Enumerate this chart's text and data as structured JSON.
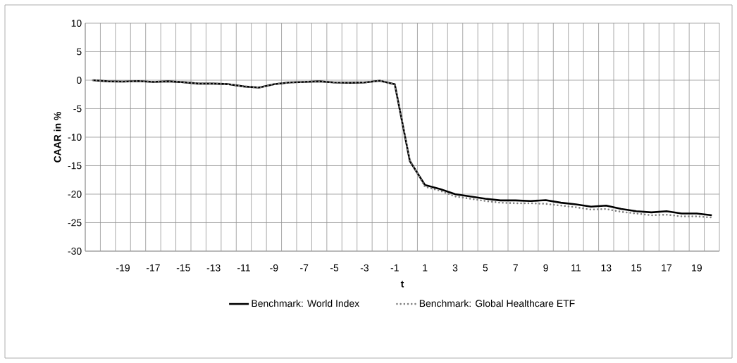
{
  "chart_data": {
    "type": "line",
    "xlabel": "t",
    "ylabel": "CAAR in %",
    "categories": [
      null,
      null,
      "-19",
      null,
      "-17",
      null,
      "-15",
      null,
      "-13",
      null,
      "-11",
      null,
      "-9",
      null,
      "-7",
      null,
      "-5",
      null,
      "-3",
      null,
      "-1",
      null,
      "1",
      null,
      "3",
      null,
      "5",
      null,
      "7",
      null,
      "9",
      null,
      "11",
      null,
      "13",
      null,
      "15",
      null,
      "17",
      null,
      "19",
      null
    ],
    "series": [
      {
        "name": "Benchmark: World Index",
        "color": "#000000",
        "line_style": "solid",
        "values": [
          0,
          -0.2,
          -0.25,
          -0.15,
          -0.3,
          -0.2,
          -0.35,
          -0.6,
          -0.6,
          -0.7,
          -1.1,
          -1.3,
          -0.7,
          -0.4,
          -0.3,
          -0.2,
          -0.4,
          -0.45,
          -0.4,
          -0.1,
          -0.7,
          -14.2,
          -18.4,
          -19.1,
          -20.0,
          -20.4,
          -20.8,
          -21.1,
          -21.1,
          -21.2,
          -21.05,
          -21.5,
          -21.8,
          -22.2,
          -22.0,
          -22.6,
          -23.0,
          -23.2,
          -23.0,
          -23.4,
          -23.4,
          -23.7
        ]
      },
      {
        "name": "Benchmark: Global Healthcare ETF",
        "color": "#7f7f7f",
        "line_style": "dotted",
        "values": [
          0,
          -0.2,
          -0.25,
          -0.15,
          -0.3,
          -0.2,
          -0.35,
          -0.6,
          -0.6,
          -0.7,
          -1.1,
          -1.3,
          -0.7,
          -0.4,
          -0.3,
          -0.2,
          -0.4,
          -0.45,
          -0.4,
          -0.1,
          -0.8,
          -14.0,
          -18.7,
          -19.4,
          -20.4,
          -20.8,
          -21.2,
          -21.5,
          -21.6,
          -21.6,
          -21.7,
          -22.0,
          -22.3,
          -22.7,
          -22.6,
          -23.1,
          -23.4,
          -23.7,
          -23.6,
          -23.9,
          -23.9,
          -24.1
        ]
      }
    ],
    "ylim": [
      -30,
      10
    ],
    "yticks": [
      -30,
      -25,
      -20,
      -15,
      -10,
      -5,
      0,
      5,
      10
    ],
    "grid": true,
    "legend": "bottom",
    "marker": "none"
  }
}
